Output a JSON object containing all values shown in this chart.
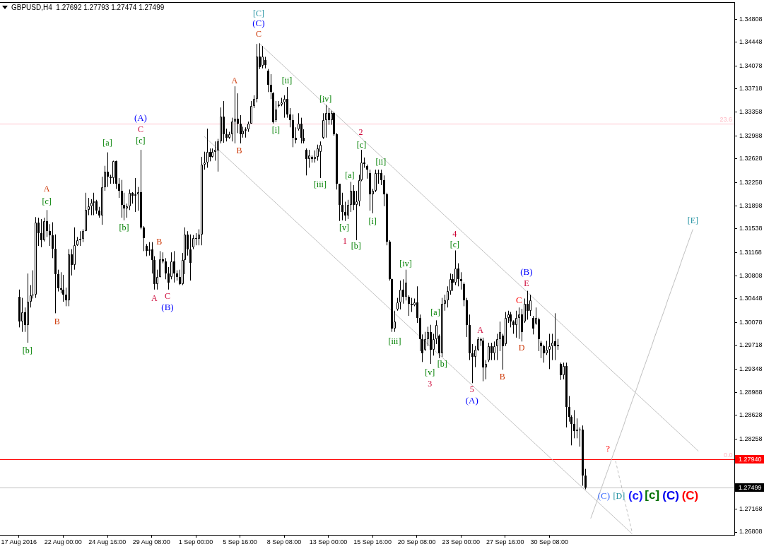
{
  "chart_data": {
    "type": "candlestick",
    "title": "GBPUSD,H4  1.27692 1.27793 1.27474 1.27499",
    "color": "#000000",
    "categories": [
      "17 Aug 2016",
      null,
      null,
      null,
      null,
      null,
      null,
      null,
      null,
      null,
      null,
      null,
      null,
      null,
      null,
      null,
      "22 Aug 00:00",
      null,
      null,
      null,
      null,
      null,
      null,
      null,
      null,
      null,
      null,
      null,
      null,
      null,
      null,
      null,
      "24 Aug 16:00",
      null,
      null,
      null,
      null,
      null,
      null,
      null,
      null,
      null,
      null,
      null,
      null,
      null,
      null,
      null,
      "29 Aug 08:00",
      null,
      null,
      null,
      null,
      null,
      null,
      null,
      null,
      null,
      null,
      null,
      null,
      null,
      null,
      null,
      "1 Sep 00:00",
      null,
      null,
      null,
      null,
      null,
      null,
      null,
      null,
      null,
      null,
      null,
      null,
      null,
      null,
      null,
      "5 Sep 16:00",
      null,
      null,
      null,
      null,
      null,
      null,
      null,
      null,
      null,
      null,
      null,
      null,
      null,
      null,
      null,
      "8 Sep 08:00",
      null,
      null,
      null,
      null,
      null,
      null,
      null,
      null,
      null,
      null,
      null,
      null,
      null,
      null,
      null,
      "13 Sep 00:00",
      null,
      null,
      null,
      null,
      null,
      null,
      null,
      null,
      null,
      null,
      null,
      null,
      null,
      null,
      null,
      "15 Sep 16:00",
      null,
      null,
      null,
      null,
      null,
      null,
      null,
      null,
      null,
      null,
      null,
      null,
      null,
      null,
      null,
      "20 Sep 08:00",
      null,
      null,
      null,
      null,
      null,
      null,
      null,
      null,
      null,
      null,
      null,
      null,
      null,
      null,
      null,
      "23 Sep 00:00",
      null,
      null,
      null,
      null,
      null,
      null,
      null,
      null,
      null,
      null,
      null,
      null,
      null,
      null,
      null,
      "27 Sep 16:00",
      null,
      null,
      null,
      null,
      null,
      null,
      null,
      null,
      null,
      null,
      null,
      null,
      null,
      null,
      null,
      "30 Sep 08:00",
      null,
      null,
      null,
      null,
      null,
      null,
      null,
      null,
      null,
      null,
      null,
      null,
      null,
      null,
      null,
      null,
      null,
      null,
      null,
      null,
      null,
      null,
      null,
      null,
      null,
      null,
      null,
      null,
      null,
      null,
      null,
      null,
      null,
      null,
      null,
      null,
      null,
      null,
      null,
      null,
      null,
      null,
      null,
      null,
      null,
      null,
      null,
      null,
      null,
      null,
      null,
      null,
      null,
      null,
      null,
      null,
      null,
      null,
      null,
      null,
      null,
      null,
      null,
      null,
      null,
      null,
      null
    ],
    "ohlc": [
      [
        1.3048,
        1.3059,
        1.3,
        1.3009
      ],
      [
        1.3009,
        1.3046,
        1.2993,
        1.3024
      ],
      [
        1.3024,
        1.3031,
        1.2993,
        1.3004
      ],
      [
        1.3004,
        1.3084,
        1.2976,
        1.304
      ],
      [
        1.304,
        1.3066,
        1.3031,
        1.305
      ],
      [
        1.305,
        1.3089,
        1.3045,
        1.3051
      ],
      [
        1.3051,
        1.3172,
        1.3046,
        1.3164
      ],
      [
        1.3164,
        1.3171,
        1.3127,
        1.3147
      ],
      [
        1.3147,
        1.3169,
        1.3125,
        1.3136
      ],
      [
        1.3136,
        1.3171,
        1.3134,
        1.3166
      ],
      [
        1.3166,
        1.3183,
        1.3141,
        1.315
      ],
      [
        1.315,
        1.3161,
        1.3127,
        1.3144
      ],
      [
        1.3144,
        1.3164,
        1.3108,
        1.3123
      ],
      [
        1.3123,
        1.3145,
        1.3022,
        1.3083
      ],
      [
        1.3083,
        1.309,
        1.3056,
        1.3061
      ],
      [
        1.3061,
        1.3086,
        1.3053,
        1.3059
      ],
      [
        1.3059,
        1.3082,
        1.304,
        1.3051
      ],
      [
        1.3051,
        1.3062,
        1.3033,
        1.3042
      ],
      [
        1.3042,
        1.3122,
        1.3033,
        1.3114
      ],
      [
        1.3114,
        1.3122,
        1.3081,
        1.3097
      ],
      [
        1.3097,
        1.3156,
        1.309,
        1.3128
      ],
      [
        1.3128,
        1.3141,
        1.3127,
        1.3136
      ],
      [
        1.3136,
        1.315,
        1.3127,
        1.3138
      ],
      [
        1.3138,
        1.3153,
        1.3133,
        1.315
      ],
      [
        1.315,
        1.321,
        1.315,
        1.3183
      ],
      [
        1.3183,
        1.3202,
        1.3175,
        1.3189
      ],
      [
        1.3189,
        1.32,
        1.3175,
        1.3194
      ],
      [
        1.3194,
        1.321,
        1.3175,
        1.3196
      ],
      [
        1.3196,
        1.3199,
        1.3177,
        1.3182
      ],
      [
        1.3182,
        1.3188,
        1.3171,
        1.3175
      ],
      [
        1.3175,
        1.3235,
        1.316,
        1.3219
      ],
      [
        1.3219,
        1.3252,
        1.3213,
        1.3243
      ],
      [
        1.3243,
        1.3273,
        1.3219,
        1.3235
      ],
      [
        1.3235,
        1.3238,
        1.3224,
        1.3233
      ],
      [
        1.3233,
        1.326,
        1.3224,
        1.3259
      ],
      [
        1.3259,
        1.326,
        1.3216,
        1.3224
      ],
      [
        1.3224,
        1.3233,
        1.3202,
        1.3213
      ],
      [
        1.3213,
        1.323,
        1.3171,
        1.3191
      ],
      [
        1.3191,
        1.321,
        1.3167,
        1.3186
      ],
      [
        1.3186,
        1.3193,
        1.3171,
        1.3189
      ],
      [
        1.3189,
        1.3215,
        1.3183,
        1.321
      ],
      [
        1.321,
        1.3211,
        1.3193,
        1.3205
      ],
      [
        1.3205,
        1.3233,
        1.318,
        1.3208
      ],
      [
        1.3208,
        1.3219,
        1.3182,
        1.3211
      ],
      [
        1.3211,
        1.3277,
        1.3153,
        1.3156
      ],
      [
        1.3156,
        1.3158,
        1.3119,
        1.3139
      ],
      [
        1.3127,
        1.313,
        1.3111,
        1.3119
      ],
      [
        1.3119,
        1.3133,
        1.3112,
        1.3122
      ],
      [
        1.3122,
        1.3133,
        1.3084,
        1.3105
      ],
      [
        1.3105,
        1.3111,
        1.3059,
        1.3068
      ],
      [
        1.3068,
        1.309,
        1.3059,
        1.3079
      ],
      [
        1.3079,
        1.3119,
        1.3078,
        1.3106
      ],
      [
        1.3106,
        1.3117,
        1.31,
        1.3103
      ],
      [
        1.3103,
        1.3108,
        1.3075,
        1.3084
      ],
      [
        1.3084,
        1.3094,
        1.3059,
        1.307
      ],
      [
        1.3079,
        1.3117,
        1.3075,
        1.3103
      ],
      [
        1.3103,
        1.3119,
        1.307,
        1.3084
      ],
      [
        1.3084,
        1.3089,
        1.3073,
        1.3079
      ],
      [
        1.3079,
        1.309,
        1.3066,
        1.3068
      ],
      [
        1.3068,
        1.3116,
        1.3066,
        1.3105
      ],
      [
        1.3105,
        1.3156,
        1.3083,
        1.3145
      ],
      [
        1.3145,
        1.315,
        1.3112,
        1.3122
      ],
      [
        1.3122,
        1.3145,
        1.3073,
        1.3101
      ],
      [
        1.3125,
        1.3144,
        1.3122,
        1.3139
      ],
      [
        1.3139,
        1.3147,
        1.3128,
        1.3138
      ],
      [
        1.3138,
        1.3153,
        1.3128,
        1.3145
      ],
      [
        1.3145,
        1.3266,
        1.3128,
        1.3254
      ],
      [
        1.3254,
        1.3274,
        1.3246,
        1.3257
      ],
      [
        1.3257,
        1.331,
        1.3249,
        1.3274
      ],
      [
        1.3274,
        1.3279,
        1.3259,
        1.3266
      ],
      [
        1.3266,
        1.3279,
        1.3265,
        1.3274
      ],
      [
        1.3274,
        1.329,
        1.326,
        1.3277
      ],
      [
        1.3276,
        1.3294,
        1.3243,
        1.329
      ],
      [
        1.329,
        1.3343,
        1.3287,
        1.3329
      ],
      [
        1.3329,
        1.3353,
        1.3288,
        1.3301
      ],
      [
        1.3301,
        1.331,
        1.329,
        1.3296
      ],
      [
        1.3296,
        1.3305,
        1.3294,
        1.3301
      ],
      [
        1.3301,
        1.3327,
        1.329,
        1.3321
      ],
      [
        1.3321,
        1.3376,
        1.3287,
        1.3325
      ],
      [
        1.3325,
        1.3365,
        1.3303,
        1.3318
      ],
      [
        1.3318,
        1.3331,
        1.3287,
        1.3301
      ],
      [
        1.3301,
        1.3313,
        1.3296,
        1.3307
      ],
      [
        1.3307,
        1.3312,
        1.3296,
        1.3309
      ],
      [
        1.3309,
        1.3321,
        1.3305,
        1.3318
      ],
      [
        1.3318,
        1.3353,
        1.3318,
        1.3345
      ],
      [
        1.3345,
        1.3362,
        1.3342,
        1.3356
      ],
      [
        1.3356,
        1.3442,
        1.3351,
        1.3422
      ],
      [
        1.3422,
        1.3443,
        1.3403,
        1.3406
      ],
      [
        1.3408,
        1.3439,
        1.3404,
        1.3422
      ],
      [
        1.3417,
        1.3422,
        1.3404,
        1.3409
      ],
      [
        1.34,
        1.3403,
        1.3367,
        1.3378
      ],
      [
        1.3378,
        1.3395,
        1.3356,
        1.3367
      ],
      [
        1.3365,
        1.3367,
        1.3318,
        1.332
      ],
      [
        1.3323,
        1.3353,
        1.332,
        1.334
      ],
      [
        1.3345,
        1.3353,
        1.3343,
        1.3348
      ],
      [
        1.3348,
        1.3358,
        1.3345,
        1.3351
      ],
      [
        1.3351,
        1.3362,
        1.3327,
        1.3356
      ],
      [
        1.3356,
        1.3375,
        1.3327,
        1.3332
      ],
      [
        1.3332,
        1.3342,
        1.3312,
        1.3323
      ],
      [
        1.3323,
        1.3332,
        1.3281,
        1.3296
      ],
      [
        1.3296,
        1.3312,
        1.3287,
        1.3292
      ],
      [
        1.3309,
        1.3334,
        1.3307,
        1.3318
      ],
      [
        1.3318,
        1.3327,
        1.3287,
        1.3296
      ],
      [
        1.3296,
        1.3309,
        1.3287,
        1.329
      ],
      [
        1.3277,
        1.3279,
        1.3237,
        1.3263
      ],
      [
        1.3263,
        1.3277,
        1.3249,
        1.3268
      ],
      [
        1.3266,
        1.3268,
        1.3257,
        1.3263
      ],
      [
        1.3263,
        1.3276,
        1.3257,
        1.3266
      ],
      [
        1.3266,
        1.3285,
        1.326,
        1.3279
      ],
      [
        1.3274,
        1.329,
        1.3233,
        1.3285
      ],
      [
        1.3296,
        1.3334,
        1.3294,
        1.3323
      ],
      [
        1.3323,
        1.3347,
        1.3296,
        1.3334
      ],
      [
        1.3334,
        1.3342,
        1.3316,
        1.3323
      ],
      [
        1.3323,
        1.3338,
        1.3316,
        1.3334
      ],
      [
        1.3334,
        1.3336,
        1.3299,
        1.3301
      ],
      [
        1.3301,
        1.3303,
        1.3215,
        1.3224
      ],
      [
        1.3224,
        1.3224,
        1.3166,
        1.3191
      ],
      [
        1.3191,
        1.321,
        1.3167,
        1.318
      ],
      [
        1.318,
        1.3196,
        1.3166,
        1.3175
      ],
      [
        1.3175,
        1.3199,
        1.3169,
        1.3191
      ],
      [
        1.3191,
        1.3227,
        1.318,
        1.3213
      ],
      [
        1.3213,
        1.3222,
        1.3183,
        1.3191
      ],
      [
        1.3191,
        1.3213,
        1.3136,
        1.3196
      ],
      [
        1.3196,
        1.3238,
        1.3189,
        1.323
      ],
      [
        1.323,
        1.3277,
        1.3228,
        1.3257
      ],
      [
        1.3257,
        1.3265,
        1.3249,
        1.3255
      ],
      [
        1.3252,
        1.3254,
        1.3232,
        1.3246
      ],
      [
        1.3241,
        1.3246,
        1.3182,
        1.3208
      ],
      [
        1.3208,
        1.3216,
        1.3178,
        1.3213
      ],
      [
        1.3213,
        1.3246,
        1.3211,
        1.3241
      ],
      [
        1.3241,
        1.3246,
        1.3224,
        1.3241
      ],
      [
        1.3241,
        1.3246,
        1.3222,
        1.323
      ],
      [
        1.323,
        1.3237,
        1.3189,
        1.3208
      ],
      [
        1.3208,
        1.321,
        1.3128,
        1.3134
      ],
      [
        1.3134,
        1.3136,
        1.3073,
        1.3075
      ],
      [
        1.3075,
        1.3076,
        1.2993,
        1.2998
      ],
      [
        1.2998,
        1.3026,
        1.2993,
        1.3009
      ],
      [
        1.3028,
        1.3046,
        1.3026,
        1.3039
      ],
      [
        1.3039,
        1.3073,
        1.3028,
        1.3059
      ],
      [
        1.3059,
        1.3075,
        1.3037,
        1.3048
      ],
      [
        1.3048,
        1.309,
        1.3042,
        1.307
      ],
      [
        1.3048,
        1.305,
        1.3018,
        1.3037
      ],
      [
        1.3037,
        1.3046,
        1.3024,
        1.3034
      ],
      [
        1.3034,
        1.3045,
        1.3033,
        1.3039
      ],
      [
        1.3039,
        1.3064,
        1.3007,
        1.3015
      ],
      [
        1.3015,
        1.302,
        1.2963,
        1.2982
      ],
      [
        1.2982,
        1.2989,
        1.2946,
        1.296
      ],
      [
        1.2965,
        1.2993,
        1.2963,
        1.2982
      ],
      [
        1.2982,
        1.3001,
        1.2971,
        1.2993
      ],
      [
        1.2993,
        1.3004,
        1.2943,
        1.2965
      ],
      [
        1.2965,
        1.299,
        1.2956,
        1.2982
      ],
      [
        1.2982,
        1.3011,
        1.2974,
        1.3004
      ],
      [
        1.2987,
        1.2989,
        1.2952,
        1.296
      ],
      [
        1.296,
        1.3046,
        1.2954,
        1.3037
      ],
      [
        1.3037,
        1.3051,
        1.3026,
        1.3042
      ],
      [
        1.3042,
        1.3064,
        1.3031,
        1.3057
      ],
      [
        1.3057,
        1.3084,
        1.3051,
        1.3075
      ],
      [
        1.3075,
        1.3083,
        1.3057,
        1.307
      ],
      [
        1.307,
        1.312,
        1.3066,
        1.3092
      ],
      [
        1.3092,
        1.31,
        1.3064,
        1.3075
      ],
      [
        1.3075,
        1.3086,
        1.3059,
        1.3072
      ],
      [
        1.3068,
        1.307,
        1.3033,
        1.3042
      ],
      [
        1.3042,
        1.3046,
        1.2985,
        1.3004
      ],
      [
        1.3004,
        1.302,
        1.2949,
        1.296
      ],
      [
        1.296,
        1.2974,
        1.2913,
        1.2954
      ],
      [
        1.2954,
        1.2971,
        1.2938,
        1.2965
      ],
      [
        1.2965,
        1.2985,
        1.2963,
        1.2982
      ],
      [
        1.2982,
        1.2984,
        1.2971,
        1.2979
      ],
      [
        1.2979,
        1.2984,
        1.2916,
        1.2938
      ],
      [
        1.2938,
        1.2949,
        1.2919,
        1.2943
      ],
      [
        1.2949,
        1.2976,
        1.2946,
        1.2971
      ],
      [
        1.2971,
        1.2976,
        1.2949,
        1.296
      ],
      [
        1.296,
        1.2978,
        1.2949,
        1.2971
      ],
      [
        1.2971,
        1.299,
        1.2949,
        1.2982
      ],
      [
        1.2982,
        1.3009,
        1.2963,
        1.2993
      ],
      [
        1.2987,
        1.299,
        1.2934,
        1.2971
      ],
      [
        1.2974,
        1.3024,
        1.2971,
        1.3015
      ],
      [
        1.3015,
        1.3026,
        1.3007,
        1.302
      ],
      [
        1.302,
        1.3024,
        1.3,
        1.3009
      ],
      [
        1.3009,
        1.3011,
        1.299,
        1.3004
      ],
      [
        1.3004,
        1.3026,
        1.2984,
        1.3015
      ],
      [
        1.3015,
        1.3031,
        1.2982,
        1.302
      ],
      [
        1.302,
        1.3029,
        1.2978,
        1.2993
      ],
      [
        1.3009,
        1.3045,
        1.3007,
        1.3037
      ],
      [
        1.3037,
        1.3057,
        1.3012,
        1.3026
      ],
      [
        1.3026,
        1.3051,
        1.3018,
        1.3042
      ],
      [
        1.3015,
        1.3018,
        1.2989,
        1.2998
      ],
      [
        1.3006,
        1.3031,
        1.3004,
        1.3015
      ],
      [
        1.3012,
        1.3015,
        1.2963,
        1.2982
      ],
      [
        1.2976,
        1.2979,
        1.2952,
        1.2971
      ],
      [
        1.2971,
        1.2973,
        1.2945,
        1.296
      ],
      [
        1.296,
        1.2979,
        1.2957,
        1.2965
      ],
      [
        1.2965,
        1.299,
        1.2935,
        1.2971
      ],
      [
        1.2971,
        1.299,
        1.2949,
        1.2976
      ],
      [
        1.2978,
        1.3022,
        1.2949,
        1.2971
      ],
      [
        1.2971,
        1.2982,
        1.2965,
        1.2973
      ],
      [
        1.2943,
        1.2945,
        1.2918,
        1.2926
      ],
      [
        1.2926,
        1.2945,
        1.2919,
        1.294
      ],
      [
        1.294,
        1.2945,
        1.2844,
        1.2876
      ],
      [
        1.2876,
        1.2893,
        1.2853,
        1.286
      ],
      [
        1.286,
        1.2863,
        1.2816,
        1.2849
      ],
      [
        1.2849,
        1.2871,
        1.2827,
        1.2838
      ],
      [
        1.2838,
        1.2858,
        1.2827,
        1.2841
      ],
      [
        1.2841,
        1.2844,
        1.2814,
        1.2841
      ],
      [
        1.2841,
        1.2847,
        1.2753,
        1.2769
      ],
      [
        1.27692,
        1.27793,
        1.27474,
        1.27499
      ],
      null,
      null,
      null,
      null,
      null,
      null,
      null,
      null,
      null,
      null,
      null,
      null,
      null,
      null,
      null,
      null,
      null,
      null,
      null,
      null,
      null,
      null,
      null,
      null,
      null,
      null,
      null,
      null,
      null,
      null,
      null,
      null,
      null,
      null,
      null,
      null,
      null,
      null,
      null,
      null,
      null,
      null,
      null,
      null,
      null,
      null,
      null,
      null,
      null,
      null,
      null,
      null,
      null,
      null
    ],
    "series": [
      {
        "type": "line",
        "color": "#c0c0c0",
        "values": [
          null,
          null,
          null,
          null,
          null,
          null,
          null,
          null,
          null,
          null,
          null,
          null,
          null,
          null,
          null,
          null,
          null,
          null,
          null,
          null,
          null,
          null,
          null,
          null,
          null,
          null,
          null,
          null,
          null,
          null,
          null,
          null,
          null,
          null,
          null,
          null,
          null,
          null,
          null,
          null,
          null,
          null,
          null,
          null,
          null,
          null,
          null,
          null,
          null,
          null,
          null,
          null,
          null,
          null,
          null,
          null,
          null,
          null,
          null,
          null,
          null,
          null,
          null,
          null,
          null,
          null,
          null,
          null,
          null,
          null,
          null,
          null,
          null,
          null,
          null,
          null,
          null,
          null,
          null,
          null,
          null,
          null,
          null,
          null,
          null,
          null,
          null,
          1.3443,
          1.3439,
          1.3435,
          1.3431,
          1.3427,
          1.3423,
          1.3419,
          1.3415,
          1.3411,
          1.3407,
          1.3403,
          1.3399,
          1.3395,
          1.3391,
          1.3387,
          1.3383,
          1.3379,
          1.3375,
          1.3371,
          1.3367,
          1.3363,
          1.3359,
          1.3355,
          1.3351,
          1.3347,
          1.3343,
          1.3339,
          1.3335,
          1.3331,
          1.3327,
          1.3323,
          1.3319,
          1.3315,
          1.3311,
          1.3307,
          1.3303,
          1.3299,
          1.3295,
          1.3291,
          1.3287,
          1.3283,
          1.3279,
          1.3275,
          1.3271,
          1.3267,
          1.3263,
          1.3259,
          1.3255,
          1.3251,
          1.3247,
          1.3243,
          1.3239,
          1.3235,
          1.3231,
          1.3227,
          1.3223,
          1.3219,
          1.3215,
          1.3211,
          1.3207,
          1.3203,
          1.3199,
          1.3195,
          1.3191,
          1.3187,
          1.3183,
          1.3179,
          1.3175,
          1.3171,
          1.3167,
          1.3163,
          1.3159,
          1.3155,
          1.3151,
          1.3147,
          1.3143,
          1.3139,
          1.3135,
          1.3131,
          1.3127,
          1.3123,
          1.3119,
          1.3115,
          1.3111,
          1.3107,
          1.3103,
          1.3099,
          1.3095,
          1.3091,
          1.3087,
          1.3083,
          1.3079,
          1.3075,
          1.3071,
          1.3067,
          1.3063,
          1.3059,
          1.3055,
          1.3051,
          1.3047,
          1.3043,
          1.3039,
          1.3035,
          1.3031,
          1.3027,
          1.3023,
          1.3019,
          1.3015,
          1.3011,
          1.3007,
          1.3003,
          1.2999,
          1.2995,
          1.2991,
          1.2987,
          1.2983,
          1.2979,
          1.2975,
          1.2971,
          1.2967,
          1.2963,
          1.2959,
          1.2955,
          1.2951,
          1.2947,
          1.2943,
          1.2939,
          1.2935,
          1.2931,
          1.2927,
          1.2923,
          1.2919,
          1.2915,
          1.2911,
          1.2907,
          1.2903,
          1.2899,
          1.2895,
          1.2891,
          1.2887,
          1.2883,
          1.2879,
          1.2875,
          1.2871,
          1.2867,
          1.2863,
          1.2859,
          1.2855,
          1.2851,
          1.2847,
          1.2843,
          1.2839,
          1.2835,
          1.2831,
          1.2827,
          1.2823,
          1.2819,
          1.2815,
          1.2811,
          1.2807,
          null,
          null,
          null,
          null,
          null,
          null,
          null,
          null,
          null,
          null,
          null,
          null,
          null
        ]
      },
      {
        "type": "line",
        "color": "#c0c0c0",
        "values": [
          null,
          null,
          null,
          null,
          null,
          null,
          null,
          null,
          null,
          null,
          null,
          null,
          null,
          null,
          null,
          null,
          null,
          null,
          null,
          null,
          null,
          null,
          null,
          null,
          null,
          null,
          null,
          null,
          null,
          null,
          null,
          null,
          null,
          null,
          null,
          null,
          null,
          null,
          null,
          null,
          null,
          null,
          null,
          null,
          null,
          null,
          null,
          null,
          null,
          null,
          null,
          null,
          null,
          null,
          null,
          null,
          null,
          null,
          null,
          null,
          null,
          null,
          null,
          null,
          null,
          null,
          null,
          1.3298,
          1.3294,
          1.329,
          1.3286,
          1.3282,
          1.3278,
          1.3274,
          1.327,
          1.3266,
          1.3262,
          1.3258,
          1.3254,
          1.325,
          1.3246,
          1.3242,
          1.3238,
          1.3234,
          1.323,
          1.3226,
          1.3222,
          1.3218,
          1.3214,
          1.321,
          1.3206,
          1.3202,
          1.3198,
          1.3194,
          1.319,
          1.3186,
          1.3182,
          1.3178,
          1.3174,
          1.317,
          1.3166,
          1.3162,
          1.3158,
          1.3154,
          1.315,
          1.3146,
          1.3142,
          1.3138,
          1.3134,
          1.313,
          1.3126,
          1.3122,
          1.3118,
          1.3114,
          1.311,
          1.3106,
          1.3102,
          1.3098,
          1.3094,
          1.309,
          1.3086,
          1.3082,
          1.3078,
          1.3074,
          1.307,
          1.3066,
          1.3062,
          1.3058,
          1.3054,
          1.305,
          1.3046,
          1.3042,
          1.3038,
          1.3034,
          1.303,
          1.3026,
          1.3022,
          1.3018,
          1.3014,
          1.301,
          1.3006,
          1.3002,
          1.2998,
          1.2994,
          1.299,
          1.2986,
          1.2982,
          1.2978,
          1.2974,
          1.297,
          1.2966,
          1.2962,
          1.2958,
          1.2954,
          1.295,
          1.2946,
          1.2942,
          1.2938,
          1.2934,
          1.293,
          1.2926,
          1.2922,
          1.2918,
          1.2914,
          1.291,
          1.2906,
          1.2902,
          1.2898,
          1.2894,
          1.289,
          1.2886,
          1.2882,
          1.2878,
          1.2874,
          1.287,
          1.2866,
          1.2862,
          1.2858,
          1.2854,
          1.285,
          1.2846,
          1.2842,
          1.2838,
          1.2834,
          1.283,
          1.2826,
          1.2822,
          1.2818,
          1.2814,
          1.281,
          1.2806,
          1.2802,
          1.2798,
          1.2794,
          1.279,
          1.2786,
          1.2782,
          1.2778,
          1.2774,
          1.277,
          1.2766,
          1.2762,
          1.2758,
          1.2754,
          1.275,
          1.2746,
          1.2742,
          1.2738,
          1.2734,
          1.273,
          1.2726,
          1.2722,
          1.2718,
          1.2714,
          1.271,
          1.2706,
          1.2702,
          1.2698,
          1.2694,
          1.269,
          1.2686,
          1.2682,
          1.2678,
          null,
          null,
          null,
          null,
          null,
          null,
          null,
          null,
          null,
          null,
          null,
          null,
          null,
          null,
          null,
          null,
          null,
          null,
          null,
          null,
          null,
          null,
          null,
          null,
          null,
          null,
          null,
          null,
          null,
          null,
          null,
          null,
          null,
          null,
          null,
          null,
          null
        ]
      },
      {
        "type": "line",
        "color": "#c0c0c0",
        "values": [
          null,
          null,
          null,
          null,
          null,
          null,
          null,
          null,
          null,
          null,
          null,
          null,
          null,
          null,
          null,
          null,
          null,
          null,
          null,
          null,
          null,
          null,
          null,
          null,
          null,
          null,
          null,
          null,
          null,
          null,
          null,
          null,
          null,
          null,
          null,
          null,
          null,
          null,
          null,
          null,
          null,
          null,
          null,
          null,
          null,
          null,
          null,
          null,
          null,
          null,
          null,
          null,
          null,
          null,
          null,
          null,
          null,
          null,
          null,
          null,
          null,
          null,
          null,
          null,
          null,
          null,
          null,
          null,
          null,
          null,
          null,
          null,
          null,
          null,
          null,
          null,
          null,
          null,
          null,
          null,
          null,
          null,
          null,
          null,
          null,
          null,
          null,
          null,
          null,
          null,
          null,
          null,
          null,
          null,
          null,
          null,
          null,
          null,
          null,
          null,
          null,
          null,
          null,
          null,
          null,
          null,
          null,
          null,
          null,
          null,
          null,
          null,
          null,
          null,
          null,
          null,
          null,
          null,
          null,
          null,
          null,
          null,
          null,
          null,
          null,
          null,
          null,
          null,
          null,
          null,
          null,
          null,
          null,
          null,
          null,
          null,
          null,
          null,
          null,
          null,
          null,
          null,
          null,
          null,
          null,
          null,
          null,
          null,
          null,
          null,
          null,
          null,
          null,
          null,
          null,
          null,
          null,
          null,
          null,
          null,
          null,
          null,
          null,
          null,
          null,
          null,
          null,
          null,
          null,
          null,
          null,
          null,
          null,
          null,
          null,
          null,
          null,
          null,
          null,
          null,
          null,
          null,
          null,
          null,
          null,
          null,
          null,
          null,
          null,
          null,
          null,
          null,
          null,
          null,
          null,
          null,
          null,
          null,
          null,
          null,
          null,
          null,
          null,
          null,
          null,
          null,
          null,
          1.2702,
          1.2714,
          1.2726,
          1.2739,
          1.2751,
          1.2763,
          1.2775,
          1.2787,
          1.28,
          1.2812,
          1.2824,
          1.2836,
          1.2848,
          1.2861,
          1.2873,
          1.2885,
          1.2897,
          1.2909,
          1.2922,
          1.2934,
          1.2946,
          1.2958,
          1.297,
          1.2983,
          1.2995,
          1.3007,
          1.3019,
          1.3031,
          1.3044,
          1.3056,
          1.3068,
          1.308,
          1.3092,
          1.3105,
          1.3117,
          1.3129,
          1.3141,
          1.3153,
          null,
          null,
          null,
          null,
          null,
          null,
          null,
          null,
          null,
          null,
          null,
          null,
          null,
          null,
          null
        ]
      },
      {
        "type": "line",
        "color": "#c0c0c0",
        "line_style": "dashed",
        "values": [
          null,
          null,
          null,
          null,
          null,
          null,
          null,
          null,
          null,
          null,
          null,
          null,
          null,
          null,
          null,
          null,
          null,
          null,
          null,
          null,
          null,
          null,
          null,
          null,
          null,
          null,
          null,
          null,
          null,
          null,
          null,
          null,
          null,
          null,
          null,
          null,
          null,
          null,
          null,
          null,
          null,
          null,
          null,
          null,
          null,
          null,
          null,
          null,
          null,
          null,
          null,
          null,
          null,
          null,
          null,
          null,
          null,
          null,
          null,
          null,
          null,
          null,
          null,
          null,
          null,
          null,
          null,
          null,
          null,
          null,
          null,
          null,
          null,
          null,
          null,
          null,
          null,
          null,
          null,
          null,
          null,
          null,
          null,
          null,
          null,
          null,
          null,
          null,
          null,
          null,
          null,
          null,
          null,
          null,
          null,
          null,
          null,
          null,
          null,
          null,
          null,
          null,
          null,
          null,
          null,
          null,
          null,
          null,
          null,
          null,
          null,
          null,
          null,
          null,
          null,
          null,
          null,
          null,
          null,
          null,
          null,
          null,
          null,
          null,
          null,
          null,
          null,
          null,
          null,
          null,
          null,
          null,
          null,
          null,
          null,
          null,
          null,
          null,
          null,
          null,
          null,
          null,
          null,
          null,
          null,
          null,
          null,
          null,
          null,
          null,
          null,
          null,
          null,
          null,
          null,
          null,
          null,
          null,
          null,
          null,
          null,
          null,
          null,
          null,
          null,
          null,
          null,
          null,
          null,
          null,
          null,
          null,
          null,
          null,
          null,
          null,
          null,
          null,
          null,
          null,
          null,
          null,
          null,
          null,
          null,
          null,
          null,
          null,
          null,
          null,
          null,
          null,
          null,
          null,
          null,
          null,
          null,
          null,
          null,
          null,
          null,
          null,
          null,
          null,
          null,
          null,
          null,
          null,
          null,
          null,
          null,
          null,
          null,
          null,
          null,
          null,
          1.2792,
          1.2773,
          1.2755,
          1.2736,
          1.2717,
          1.2699,
          1.268,
          null,
          null,
          null,
          null,
          null,
          null,
          null,
          null,
          null,
          null,
          null,
          null,
          null,
          null,
          null,
          null,
          null,
          null,
          null,
          null,
          null,
          null,
          null,
          null,
          null,
          null,
          null,
          null,
          null,
          null,
          null,
          null,
          null,
          null,
          null,
          null,
          null
        ]
      }
    ],
    "ylim": [
      1.26764,
      1.35073
    ],
    "yticks": [
      1.34808,
      1.34448,
      1.34078,
      1.33718,
      1.33358,
      1.32988,
      1.32628,
      1.32258,
      1.31898,
      1.31538,
      1.31168,
      1.30808,
      1.30448,
      1.30078,
      1.29718,
      1.29348,
      1.28988,
      1.28628,
      1.28258,
      1.27168,
      1.26808
    ],
    "ref_lines": [
      {
        "axis": "y",
        "value": 1.3318,
        "color": "#ffc0cb"
      },
      {
        "axis": "y",
        "value": 1.2794,
        "label": "1.27940",
        "color": "#ff0000"
      },
      {
        "axis": "y",
        "value": 1.27499,
        "label": "1.27499",
        "color": "#c0c0c0"
      }
    ],
    "annotations": [
      "[b]",
      "A",
      "[c]",
      "B",
      "[a]",
      "[b]",
      "(A)",
      "C",
      "[c]",
      "B",
      "A",
      "C",
      "(B)",
      "B",
      "A",
      "[C]",
      "(C)",
      "C",
      {
        "text": "[ii]",
        "y": 1.3375
      },
      "[i]",
      {
        "text": "[iv]",
        "y": 1.3347
      },
      "[iii]",
      "2",
      "[c]",
      "[ii]",
      "[a]",
      "[v]",
      "[i]",
      "1",
      "[b]",
      "[iv]",
      "[iii]",
      "4",
      "[c]",
      "[a]",
      "[b]",
      "[v]",
      "3",
      "5",
      "(A)",
      "A",
      "B",
      "C",
      "D",
      "(B)",
      "E",
      "[E]",
      "?",
      "(C)",
      "[D]",
      "(c)",
      "[c]",
      "(C)",
      "(C)",
      "23.6",
      "0.0"
    ]
  }
}
